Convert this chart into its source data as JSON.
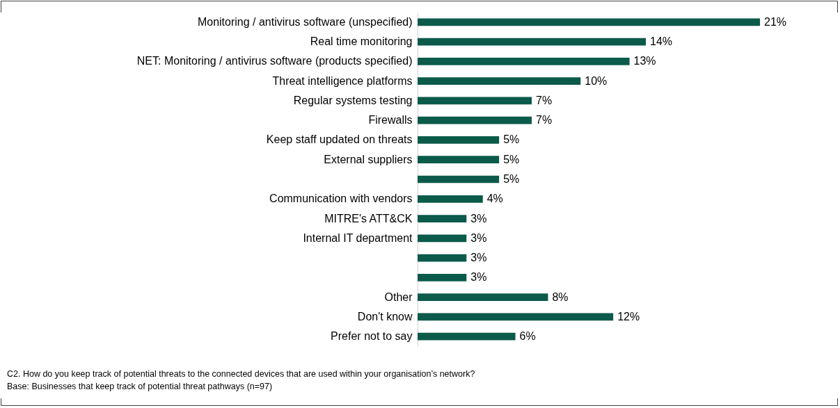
{
  "chart_data": {
    "type": "bar",
    "orientation": "horizontal",
    "categories": [
      "Monitoring / antivirus software (unspecified)",
      "Real time monitoring",
      "NET: Monitoring / antivirus software (products specified)",
      "Threat intelligence platforms",
      "Regular systems testing",
      "Firewalls",
      "Keep staff updated on threats",
      "External suppliers",
      null,
      "Communication with vendors",
      "MITRE's ATT&CK",
      "Internal IT department",
      null,
      null,
      "Other",
      "Don't know",
      "Prefer not to say"
    ],
    "values": [
      21,
      14,
      13,
      10,
      7,
      7,
      5,
      5,
      5,
      4,
      3,
      3,
      3,
      3,
      8,
      12,
      6
    ],
    "value_labels": [
      "21%",
      "14%",
      "13%",
      "10%",
      "7%",
      "7%",
      "5%",
      "5%",
      "5%",
      "4%",
      "3%",
      "3%",
      "3%",
      "3%",
      "8%",
      "12%",
      "6%"
    ],
    "color": "#0b5a4a",
    "annotations": [
      "C2. How do you keep track of potential threats to the connected devices that are used within your organisation’s network?",
      "Base: Businesses that keep track of potential threat pathways (n=97)"
    ]
  }
}
